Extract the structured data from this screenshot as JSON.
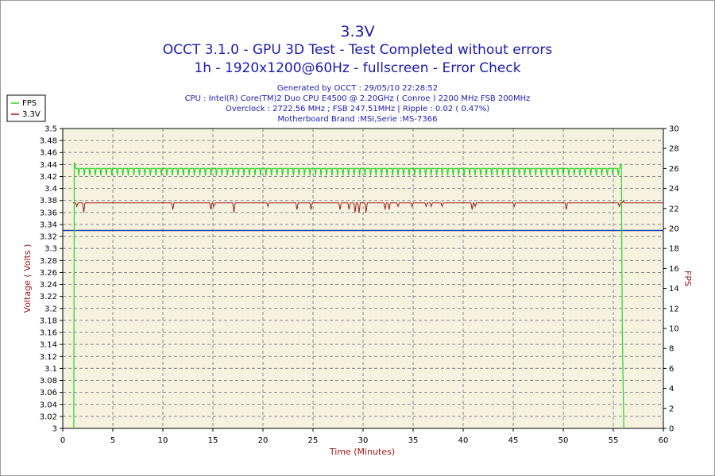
{
  "chart_data": {
    "type": "line",
    "title": "3.3V",
    "subtitle_lines": [
      "OCCT 3.1.0 - GPU 3D Test - Test Completed without errors",
      "1h - 1920x1200@60Hz - fullscreen - Error Check"
    ],
    "info_lines": [
      "Generated by OCCT : 29/05/10 22:28:52",
      "CPU : Intel(R) Core(TM)2 Duo CPU E4500 @ 2.20GHz ( Conroe ) 2200 MHz FSB 200MHz",
      "Overclock : 2722.56 MHz ; FSB 247.51MHz | Ripple : 0.02 ( 0.47%)",
      "Motherboard Brand :MSI,Serie :MS-7366"
    ],
    "xlabel": "Time (Minutes)",
    "ylabel": "Voltage ( Volts )",
    "y2label": "FPS",
    "xlim": [
      0,
      60
    ],
    "ylim": [
      3.0,
      3.5
    ],
    "y2lim": [
      0,
      30
    ],
    "x_ticks": [
      "0",
      "5",
      "10",
      "15",
      "20",
      "25",
      "30",
      "35",
      "40",
      "45",
      "50",
      "55",
      "60"
    ],
    "y_ticks": [
      "3",
      "3.02",
      "3.04",
      "3.06",
      "3.08",
      "3.1",
      "3.12",
      "3.14",
      "3.16",
      "3.18",
      "3.2",
      "3.22",
      "3.24",
      "3.26",
      "3.28",
      "3.3",
      "3.32",
      "3.34",
      "3.36",
      "3.38",
      "3.4",
      "3.42",
      "3.44",
      "3.46",
      "3.48",
      "3.5"
    ],
    "y2_ticks": [
      "0",
      "2",
      "4",
      "6",
      "8",
      "10",
      "12",
      "14",
      "16",
      "18",
      "20",
      "22",
      "24",
      "26",
      "28",
      "30"
    ],
    "grid": true,
    "legend_position": "top-left",
    "reference_line": {
      "y": 3.33,
      "color": "#1f3fa8"
    },
    "series": [
      {
        "name": "FPS",
        "axis": "right",
        "color": "#2fd22f",
        "baseline": 26.0,
        "start": 1.2,
        "end": 56.0,
        "dip_period": 0.55,
        "dip_value": 25.3,
        "x": [
          1.1,
          1.2,
          1.3,
          55.6,
          55.8,
          56.0,
          56.1
        ],
        "values": [
          0,
          26.5,
          26.0,
          26.0,
          26.5,
          10,
          0
        ]
      },
      {
        "name": "3.3V",
        "axis": "left",
        "color": "#a01818",
        "baseline": 3.376,
        "start": 1.2,
        "end": 56.0,
        "drops": [
          [
            1.4,
            3.37
          ],
          [
            2.1,
            3.36
          ],
          [
            11.0,
            3.365
          ],
          [
            14.8,
            3.365
          ],
          [
            15.1,
            3.37
          ],
          [
            17.1,
            3.36
          ],
          [
            20.5,
            3.37
          ],
          [
            23.4,
            3.365
          ],
          [
            24.8,
            3.365
          ],
          [
            27.7,
            3.365
          ],
          [
            28.6,
            3.365
          ],
          [
            29.2,
            3.36
          ],
          [
            29.6,
            3.36
          ],
          [
            30.3,
            3.36
          ],
          [
            32.2,
            3.365
          ],
          [
            32.6,
            3.365
          ],
          [
            33.5,
            3.37
          ],
          [
            34.9,
            3.37
          ],
          [
            36.3,
            3.37
          ],
          [
            36.8,
            3.37
          ],
          [
            37.9,
            3.37
          ],
          [
            40.9,
            3.365
          ],
          [
            41.2,
            3.37
          ],
          [
            45.1,
            3.37
          ],
          [
            50.3,
            3.365
          ],
          [
            55.6,
            3.37
          ]
        ],
        "x": [
          1.0,
          1.2,
          55.9,
          56.0,
          56.1,
          60
        ],
        "values": [
          3.376,
          3.376,
          3.376,
          3.38,
          3.376,
          3.376
        ]
      }
    ]
  }
}
